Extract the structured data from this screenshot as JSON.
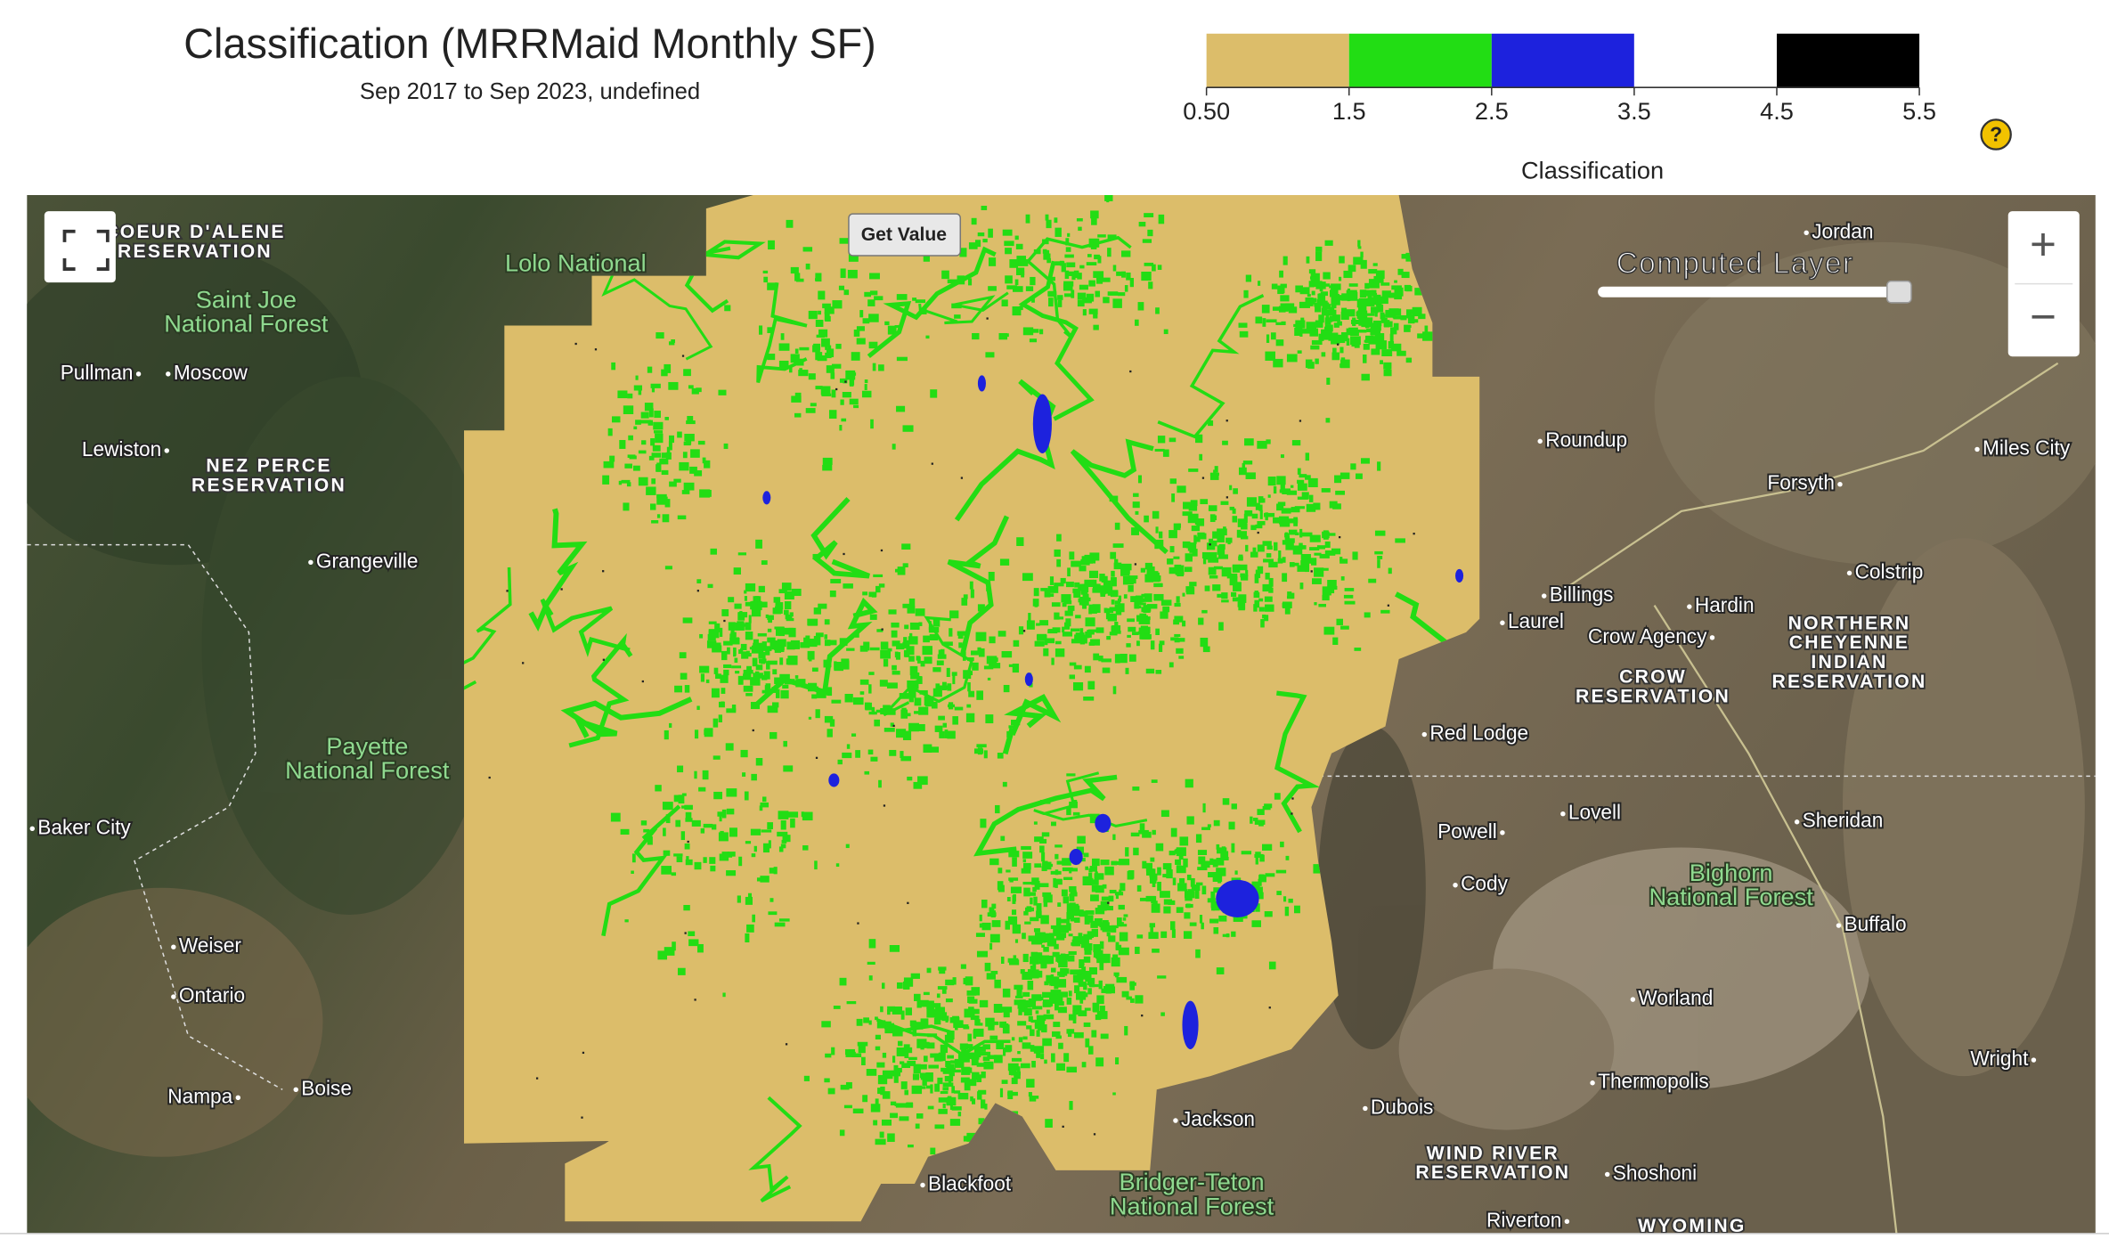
{
  "header": {
    "title": "Classification (MRRMaid Monthly SF)",
    "subtitle": "Sep 2017 to Sep 2023, undefined"
  },
  "colorbar": {
    "colors": [
      "#dcbd6a",
      "#22dd14",
      "#1d22dd",
      "#ffffff",
      "#000000"
    ],
    "ticks": [
      {
        "value": 0.5,
        "label": "0.50"
      },
      1.5,
      2.5,
      3.5,
      4.5,
      5.5
    ],
    "label": "Classification"
  },
  "controls": {
    "get_value": "Get Value",
    "layer_label": "Computed Layer",
    "zoom_in": "+",
    "zoom_out": "−",
    "help": "?"
  },
  "map": {
    "towns": [
      "Jordan",
      "Pullman",
      "Moscow",
      "Lewiston",
      "Grangeville",
      "Roundup",
      "Forsyth",
      "Miles City",
      "Billings",
      "Hardin",
      "Laurel",
      "Crow Agency",
      "Colstrip",
      "Red Lodge",
      "Powell",
      "Lovell",
      "Sheridan",
      "Cody",
      "Boise",
      "Nampa",
      "Ontario",
      "Weiser",
      "Baker City",
      "Blackfoot",
      "Jackson",
      "Thermopolis",
      "Dubois",
      "Shoshoni",
      "Riverton",
      "Worland",
      "Buffalo",
      "Wright"
    ],
    "regions": [
      [
        "COEUR D'ALENE",
        "RESERVATION"
      ],
      [
        "NEZ PERCE",
        "RESERVATION"
      ],
      [
        "CROW",
        "RESERVATION"
      ],
      [
        "NORTHERN",
        "CHEYENNE",
        "INDIAN",
        "RESERVATION"
      ],
      [
        "WIND RIVER",
        "RESERVATION"
      ],
      [
        "WYOMING"
      ]
    ],
    "forests": [
      [
        "Saint Joe",
        "National Forest"
      ],
      [
        "Payette",
        "National Forest"
      ],
      [
        "Bighorn",
        "National Forest"
      ],
      [
        "Bridger-Teton",
        "National Forest"
      ],
      [
        "Lolo National"
      ]
    ]
  }
}
